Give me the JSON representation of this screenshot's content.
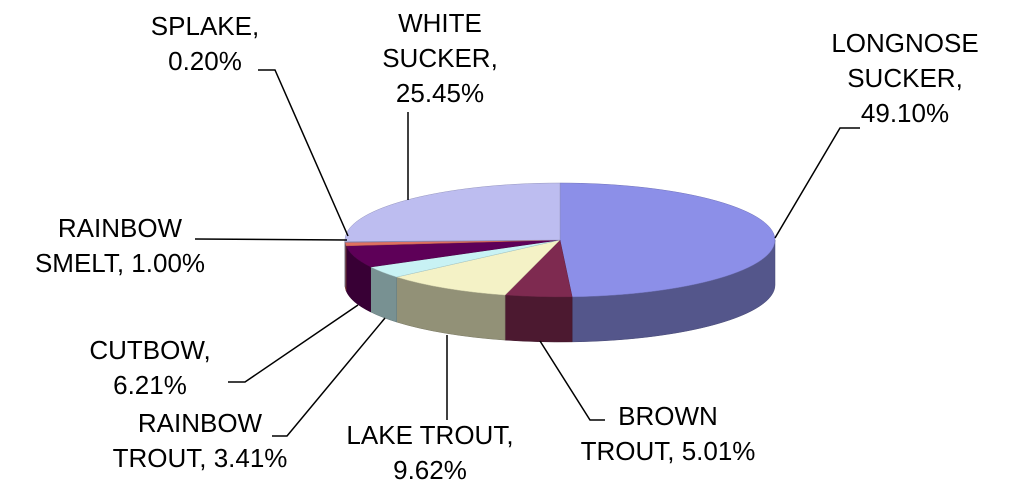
{
  "chart_data": {
    "type": "pie",
    "style": "3d",
    "categories": [
      "LONGNOSE SUCKER",
      "BROWN TROUT",
      "LAKE TROUT",
      "RAINBOW TROUT",
      "CUTBOW",
      "RAINBOW SMELT",
      "SPLAKE",
      "WHITE SUCKER"
    ],
    "values": [
      49.1,
      5.01,
      9.62,
      3.41,
      6.21,
      1.0,
      0.2,
      25.45
    ],
    "value_labels": [
      "49.10%",
      "5.01%",
      "9.62%",
      "3.41%",
      "6.21%",
      "1.00%",
      "0.20%",
      "25.45%"
    ],
    "label_separator": ",",
    "colors": [
      "#8c8fe8",
      "#7e2a50",
      "#f4f2c6",
      "#c8f2f4",
      "#5e0058",
      "#e07060",
      "#9a9ad0",
      "#bdbdf0"
    ]
  }
}
